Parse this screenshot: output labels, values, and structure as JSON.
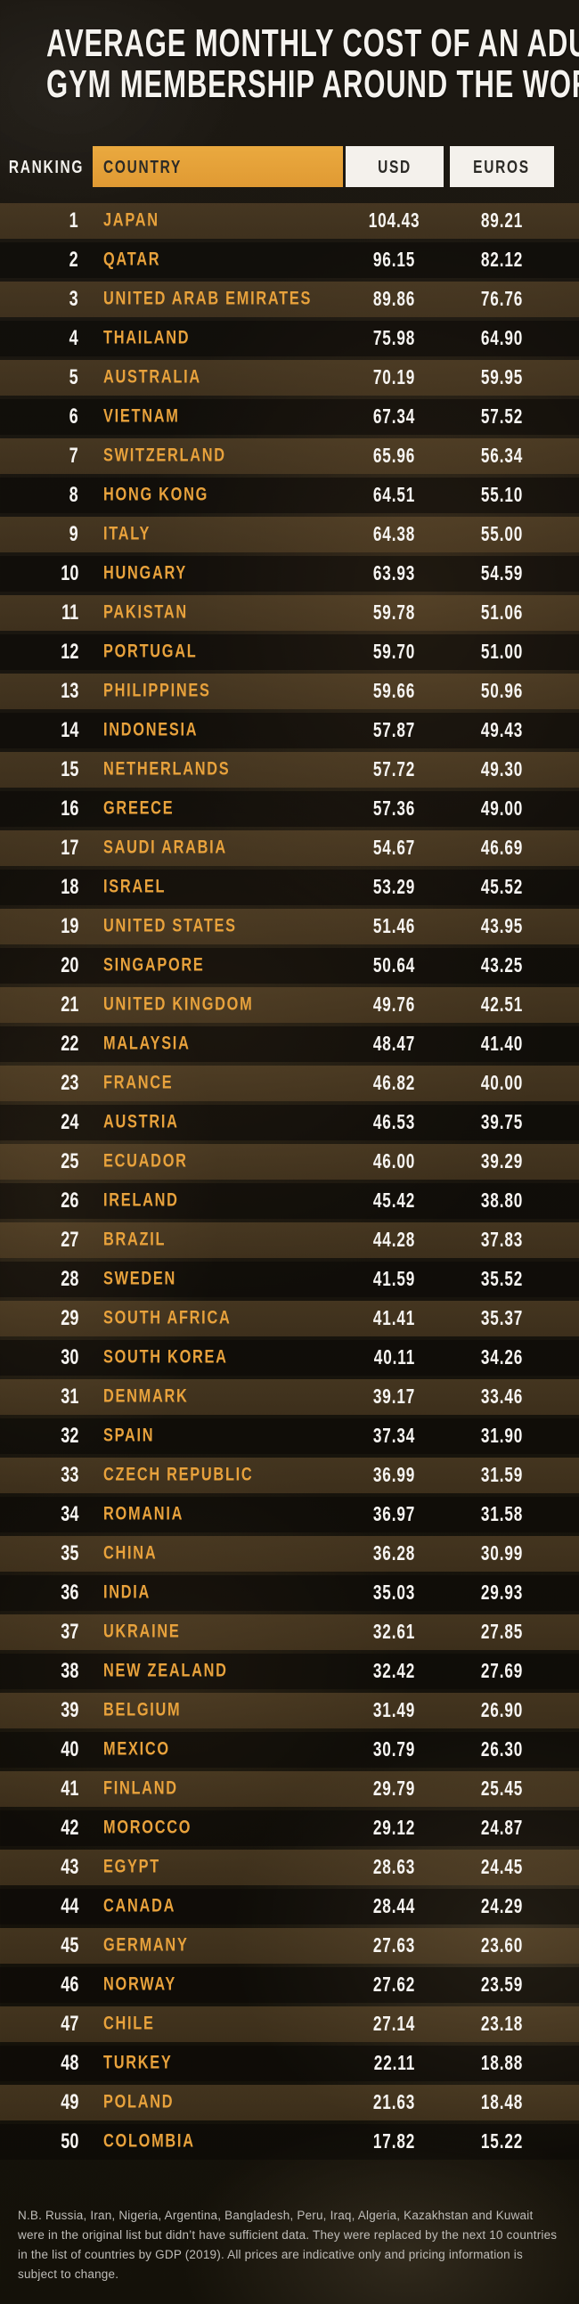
{
  "title": {
    "line1": "AVERAGE MONTHLY COST OF AN ADULT",
    "line2": "GYM MEMBERSHIP AROUND THE WORLD"
  },
  "colors": {
    "accent_orange": "#e8a23c",
    "header_box_white": "#f4f1ec",
    "header_ink": "#2b2a26",
    "row_brown": "rgba(105,80,46,0.5)",
    "row_dark": "rgba(10,8,5,0.52)",
    "background": "#17130f",
    "text_white": "#f7f5f2",
    "footnote_gray": "#bfbdb9"
  },
  "footnote": "N.B. Russia, Iran, Nigeria, Argentina, Bangladesh, Peru, Iraq, Algeria, Kazakhstan and Kuwait were in the original list but didn’t have sufficient data. They were replaced by the next 10 countries in the list of countries by GDP (2019). All prices are indicative only and pricing information is subject to change.",
  "chart_data": {
    "type": "table",
    "title": "AVERAGE MONTHLY COST OF AN ADULT GYM MEMBERSHIP AROUND THE WORLD",
    "columns": [
      "RANKING",
      "COUNTRY",
      "USD",
      "EUROS"
    ],
    "rows": [
      [
        1,
        "JAPAN",
        "104.43",
        "89.21"
      ],
      [
        2,
        "QATAR",
        "96.15",
        "82.12"
      ],
      [
        3,
        "UNITED ARAB EMIRATES",
        "89.86",
        "76.76"
      ],
      [
        4,
        "THAILAND",
        "75.98",
        "64.90"
      ],
      [
        5,
        "AUSTRALIA",
        "70.19",
        "59.95"
      ],
      [
        6,
        "VIETNAM",
        "67.34",
        "57.52"
      ],
      [
        7,
        "SWITZERLAND",
        "65.96",
        "56.34"
      ],
      [
        8,
        "HONG KONG",
        "64.51",
        "55.10"
      ],
      [
        9,
        "ITALY",
        "64.38",
        "55.00"
      ],
      [
        10,
        "HUNGARY",
        "63.93",
        "54.59"
      ],
      [
        11,
        "PAKISTAN",
        "59.78",
        "51.06"
      ],
      [
        12,
        "PORTUGAL",
        "59.70",
        "51.00"
      ],
      [
        13,
        "PHILIPPINES",
        "59.66",
        "50.96"
      ],
      [
        14,
        "INDONESIA",
        "57.87",
        "49.43"
      ],
      [
        15,
        "NETHERLANDS",
        "57.72",
        "49.30"
      ],
      [
        16,
        "GREECE",
        "57.36",
        "49.00"
      ],
      [
        17,
        "SAUDI ARABIA",
        "54.67",
        "46.69"
      ],
      [
        18,
        "ISRAEL",
        "53.29",
        "45.52"
      ],
      [
        19,
        "UNITED STATES",
        "51.46",
        "43.95"
      ],
      [
        20,
        "SINGAPORE",
        "50.64",
        "43.25"
      ],
      [
        21,
        "UNITED KINGDOM",
        "49.76",
        "42.51"
      ],
      [
        22,
        "MALAYSIA",
        "48.47",
        "41.40"
      ],
      [
        23,
        "FRANCE",
        "46.82",
        "40.00"
      ],
      [
        24,
        "AUSTRIA",
        "46.53",
        "39.75"
      ],
      [
        25,
        "ECUADOR",
        "46.00",
        "39.29"
      ],
      [
        26,
        "IRELAND",
        "45.42",
        "38.80"
      ],
      [
        27,
        "BRAZIL",
        "44.28",
        "37.83"
      ],
      [
        28,
        "SWEDEN",
        "41.59",
        "35.52"
      ],
      [
        29,
        "SOUTH AFRICA",
        "41.41",
        "35.37"
      ],
      [
        30,
        "SOUTH KOREA",
        "40.11",
        "34.26"
      ],
      [
        31,
        "DENMARK",
        "39.17",
        "33.46"
      ],
      [
        32,
        "SPAIN",
        "37.34",
        "31.90"
      ],
      [
        33,
        "CZECH REPUBLIC",
        "36.99",
        "31.59"
      ],
      [
        34,
        "ROMANIA",
        "36.97",
        "31.58"
      ],
      [
        35,
        "CHINA",
        "36.28",
        "30.99"
      ],
      [
        36,
        "INDIA",
        "35.03",
        "29.93"
      ],
      [
        37,
        "UKRAINE",
        "32.61",
        "27.85"
      ],
      [
        38,
        "NEW ZEALAND",
        "32.42",
        "27.69"
      ],
      [
        39,
        "BELGIUM",
        "31.49",
        "26.90"
      ],
      [
        40,
        "MEXICO",
        "30.79",
        "26.30"
      ],
      [
        41,
        "FINLAND",
        "29.79",
        "25.45"
      ],
      [
        42,
        "MOROCCO",
        "29.12",
        "24.87"
      ],
      [
        43,
        "EGYPT",
        "28.63",
        "24.45"
      ],
      [
        44,
        "CANADA",
        "28.44",
        "24.29"
      ],
      [
        45,
        "GERMANY",
        "27.63",
        "23.60"
      ],
      [
        46,
        "NORWAY",
        "27.62",
        "23.59"
      ],
      [
        47,
        "CHILE",
        "27.14",
        "23.18"
      ],
      [
        48,
        "TURKEY",
        "22.11",
        "18.88"
      ],
      [
        49,
        "POLAND",
        "21.63",
        "18.48"
      ],
      [
        50,
        "COLOMBIA",
        "17.82",
        "15.22"
      ]
    ]
  }
}
